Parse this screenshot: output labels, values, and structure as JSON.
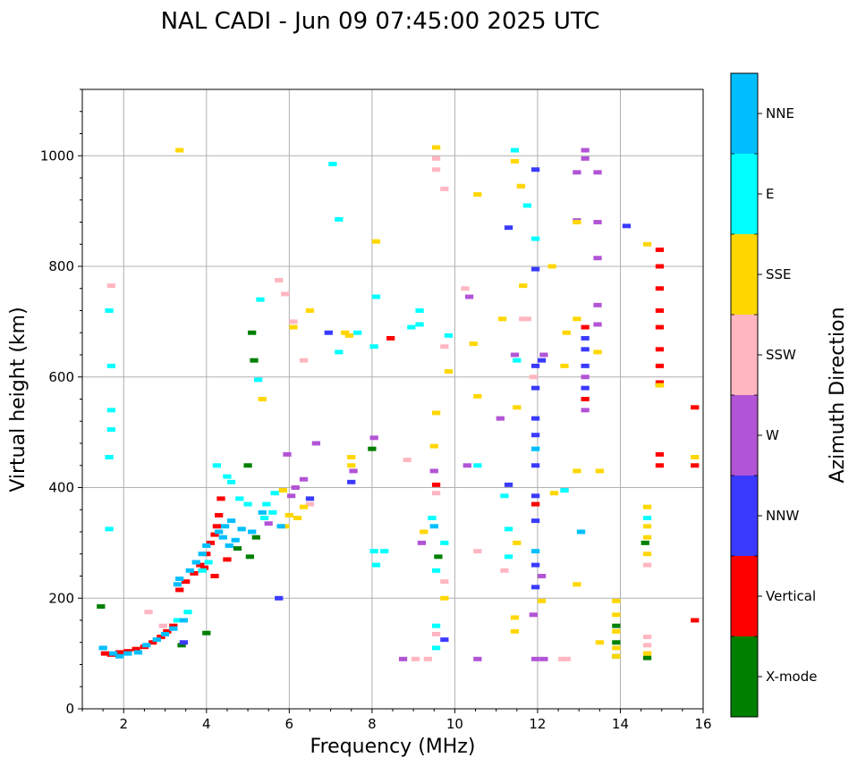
{
  "chart_data": {
    "type": "scatter",
    "title": "NAL CADI - Jun 09 07:45:00 2025 UTC",
    "xlabel": "Frequency (MHz)",
    "ylabel": "Virtual height (km)",
    "xlim": [
      1,
      16
    ],
    "ylim": [
      0,
      1120
    ],
    "grid": true,
    "xticks": [
      2,
      4,
      6,
      8,
      10,
      12,
      14,
      16
    ],
    "xtick_labels": [
      "2",
      "4",
      "6",
      "8",
      "10",
      "12",
      "14",
      "16"
    ],
    "yticks": [
      0,
      200,
      400,
      600,
      800,
      1000
    ],
    "ytick_labels": [
      "0",
      "200",
      "400",
      "600",
      "800",
      "1000"
    ],
    "colorbar": {
      "label": "Azimuth Direction",
      "placement": "right",
      "categories": [
        {
          "name": "X-mode",
          "color": "#008000"
        },
        {
          "name": "Vertical",
          "color": "#ff0000"
        },
        {
          "name": "NNW",
          "color": "#3a3aff"
        },
        {
          "name": "W",
          "color": "#b254d6"
        },
        {
          "name": "SSW",
          "color": "#ffb6c1"
        },
        {
          "name": "SSE",
          "color": "#ffd700"
        },
        {
          "name": "E",
          "color": "#00ffff"
        },
        {
          "name": "NNE",
          "color": "#00bfff"
        }
      ]
    },
    "series": [
      {
        "name": "Vertical",
        "points": [
          [
            1.55,
            100
          ],
          [
            1.7,
            98
          ],
          [
            1.9,
            102
          ],
          [
            2.1,
            104
          ],
          [
            2.3,
            108
          ],
          [
            2.5,
            112
          ],
          [
            2.7,
            120
          ],
          [
            2.9,
            130
          ],
          [
            3.05,
            140
          ],
          [
            3.2,
            150
          ],
          [
            3.35,
            215
          ],
          [
            3.5,
            230
          ],
          [
            3.7,
            245
          ],
          [
            3.85,
            260
          ],
          [
            4.0,
            280
          ],
          [
            4.1,
            300
          ],
          [
            4.2,
            315
          ],
          [
            4.25,
            330
          ],
          [
            4.3,
            350
          ],
          [
            4.35,
            380
          ],
          [
            4.2,
            240
          ],
          [
            3.95,
            255
          ],
          [
            4.5,
            270
          ],
          [
            14.95,
            830
          ],
          [
            14.95,
            800
          ],
          [
            14.95,
            760
          ],
          [
            14.95,
            720
          ],
          [
            14.95,
            690
          ],
          [
            14.95,
            650
          ],
          [
            14.95,
            620
          ],
          [
            14.95,
            590
          ],
          [
            14.95,
            460
          ],
          [
            14.95,
            440
          ],
          [
            15.8,
            545
          ],
          [
            15.8,
            440
          ],
          [
            15.8,
            160
          ],
          [
            8.45,
            670
          ],
          [
            11.95,
            370
          ],
          [
            9.55,
            405
          ],
          [
            13.15,
            690
          ],
          [
            13.15,
            560
          ]
        ]
      },
      {
        "name": "X-mode",
        "points": [
          [
            1.45,
            185
          ],
          [
            4.0,
            137
          ],
          [
            3.4,
            115
          ],
          [
            5.1,
            680
          ],
          [
            5.15,
            630
          ],
          [
            5.0,
            440
          ],
          [
            4.75,
            290
          ],
          [
            5.2,
            310
          ],
          [
            8.0,
            470
          ],
          [
            13.9,
            95
          ],
          [
            13.9,
            120
          ],
          [
            13.9,
            150
          ],
          [
            14.65,
            92
          ],
          [
            14.6,
            300
          ],
          [
            14.95,
            585
          ],
          [
            9.6,
            275
          ],
          [
            5.05,
            275
          ]
        ]
      },
      {
        "name": "NNW",
        "points": [
          [
            13.15,
            580
          ],
          [
            13.15,
            620
          ],
          [
            13.15,
            650
          ],
          [
            13.15,
            670
          ],
          [
            14.15,
            873
          ],
          [
            11.95,
            620
          ],
          [
            11.95,
            580
          ],
          [
            11.95,
            525
          ],
          [
            11.95,
            440
          ],
          [
            11.95,
            385
          ],
          [
            11.95,
            260
          ],
          [
            11.95,
            220
          ],
          [
            11.3,
            870
          ],
          [
            11.3,
            405
          ],
          [
            12.1,
            630
          ],
          [
            5.75,
            200
          ],
          [
            6.95,
            680
          ],
          [
            7.5,
            410
          ],
          [
            9.75,
            125
          ],
          [
            11.95,
            975
          ],
          [
            11.95,
            795
          ],
          [
            11.95,
            495
          ],
          [
            11.95,
            340
          ],
          [
            6.5,
            380
          ],
          [
            3.45,
            120
          ]
        ]
      },
      {
        "name": "W",
        "points": [
          [
            13.15,
            1010
          ],
          [
            13.15,
            995
          ],
          [
            13.15,
            540
          ],
          [
            13.15,
            600
          ],
          [
            13.45,
            970
          ],
          [
            13.45,
            880
          ],
          [
            13.45,
            815
          ],
          [
            13.45,
            730
          ],
          [
            13.45,
            695
          ],
          [
            12.95,
            970
          ],
          [
            12.95,
            883
          ],
          [
            12.65,
            395
          ],
          [
            11.1,
            525
          ],
          [
            11.9,
            170
          ],
          [
            11.95,
            90
          ],
          [
            12.1,
            240
          ],
          [
            10.3,
            440
          ],
          [
            10.55,
            90
          ],
          [
            9.5,
            430
          ],
          [
            9.2,
            300
          ],
          [
            8.75,
            90
          ],
          [
            6.65,
            480
          ],
          [
            6.35,
            415
          ],
          [
            6.15,
            400
          ],
          [
            6.05,
            385
          ],
          [
            5.95,
            460
          ],
          [
            7.55,
            430
          ],
          [
            8.05,
            490
          ],
          [
            10.35,
            745
          ],
          [
            11.45,
            640
          ],
          [
            12.15,
            640
          ],
          [
            12.15,
            90
          ],
          [
            5.5,
            335
          ]
        ]
      },
      {
        "name": "SSW",
        "points": [
          [
            1.7,
            765
          ],
          [
            2.6,
            175
          ],
          [
            2.95,
            150
          ],
          [
            5.75,
            775
          ],
          [
            5.9,
            750
          ],
          [
            6.1,
            700
          ],
          [
            6.35,
            630
          ],
          [
            5.85,
            395
          ],
          [
            6.5,
            370
          ],
          [
            9.55,
            995
          ],
          [
            9.55,
            975
          ],
          [
            9.75,
            940
          ],
          [
            9.75,
            655
          ],
          [
            9.75,
            230
          ],
          [
            9.55,
            390
          ],
          [
            9.55,
            135
          ],
          [
            9.05,
            90
          ],
          [
            9.35,
            90
          ],
          [
            8.85,
            450
          ],
          [
            10.25,
            760
          ],
          [
            10.55,
            285
          ],
          [
            11.2,
            250
          ],
          [
            11.6,
            945
          ],
          [
            11.65,
            705
          ],
          [
            11.9,
            600
          ],
          [
            11.75,
            705
          ],
          [
            12.6,
            90
          ],
          [
            12.7,
            90
          ],
          [
            14.65,
            130
          ],
          [
            14.65,
            115
          ],
          [
            14.65,
            100
          ],
          [
            14.65,
            260
          ]
        ]
      },
      {
        "name": "SSE",
        "points": [
          [
            3.35,
            1010
          ],
          [
            6.5,
            720
          ],
          [
            6.1,
            690
          ],
          [
            5.35,
            560
          ],
          [
            5.85,
            395
          ],
          [
            6.0,
            350
          ],
          [
            6.2,
            345
          ],
          [
            5.9,
            330
          ],
          [
            6.35,
            365
          ],
          [
            7.5,
            455
          ],
          [
            7.5,
            440
          ],
          [
            7.45,
            675
          ],
          [
            7.35,
            680
          ],
          [
            8.1,
            845
          ],
          [
            9.25,
            320
          ],
          [
            9.5,
            475
          ],
          [
            9.55,
            535
          ],
          [
            9.55,
            1015
          ],
          [
            9.85,
            610
          ],
          [
            9.75,
            200
          ],
          [
            10.55,
            930
          ],
          [
            10.45,
            660
          ],
          [
            10.55,
            565
          ],
          [
            11.15,
            705
          ],
          [
            11.45,
            990
          ],
          [
            11.45,
            165
          ],
          [
            11.45,
            140
          ],
          [
            11.6,
            945
          ],
          [
            11.5,
            545
          ],
          [
            11.5,
            300
          ],
          [
            11.65,
            765
          ],
          [
            12.1,
            195
          ],
          [
            12.35,
            800
          ],
          [
            12.4,
            390
          ],
          [
            12.7,
            680
          ],
          [
            12.65,
            620
          ],
          [
            12.95,
            880
          ],
          [
            12.95,
            705
          ],
          [
            12.95,
            430
          ],
          [
            12.95,
            225
          ],
          [
            13.45,
            645
          ],
          [
            13.5,
            430
          ],
          [
            13.5,
            120
          ],
          [
            13.9,
            195
          ],
          [
            13.9,
            170
          ],
          [
            13.9,
            140
          ],
          [
            13.9,
            110
          ],
          [
            13.9,
            95
          ],
          [
            14.65,
            840
          ],
          [
            14.65,
            365
          ],
          [
            14.65,
            330
          ],
          [
            14.65,
            310
          ],
          [
            14.65,
            280
          ],
          [
            14.65,
            100
          ],
          [
            15.8,
            455
          ],
          [
            14.95,
            585
          ]
        ]
      },
      {
        "name": "E",
        "points": [
          [
            1.65,
            720
          ],
          [
            1.7,
            620
          ],
          [
            1.7,
            540
          ],
          [
            1.7,
            505
          ],
          [
            1.65,
            455
          ],
          [
            1.65,
            325
          ],
          [
            3.55,
            175
          ],
          [
            3.3,
            160
          ],
          [
            4.25,
            440
          ],
          [
            4.5,
            420
          ],
          [
            4.6,
            410
          ],
          [
            4.8,
            380
          ],
          [
            5.0,
            370
          ],
          [
            5.3,
            740
          ],
          [
            5.25,
            595
          ],
          [
            5.45,
            370
          ],
          [
            5.6,
            355
          ],
          [
            5.65,
            390
          ],
          [
            5.4,
            345
          ],
          [
            7.05,
            985
          ],
          [
            7.2,
            885
          ],
          [
            7.2,
            645
          ],
          [
            7.65,
            680
          ],
          [
            8.05,
            655
          ],
          [
            8.05,
            285
          ],
          [
            8.1,
            260
          ],
          [
            8.1,
            745
          ],
          [
            8.3,
            285
          ],
          [
            8.95,
            690
          ],
          [
            9.15,
            720
          ],
          [
            9.15,
            695
          ],
          [
            9.45,
            345
          ],
          [
            9.55,
            250
          ],
          [
            9.55,
            150
          ],
          [
            9.55,
            110
          ],
          [
            9.75,
            300
          ],
          [
            9.85,
            675
          ],
          [
            10.55,
            440
          ],
          [
            11.2,
            385
          ],
          [
            11.3,
            325
          ],
          [
            11.3,
            275
          ],
          [
            11.45,
            1010
          ],
          [
            11.5,
            630
          ],
          [
            11.75,
            910
          ],
          [
            11.95,
            850
          ],
          [
            11.95,
            470
          ],
          [
            12.65,
            395
          ],
          [
            13.05,
            320
          ],
          [
            14.65,
            345
          ],
          [
            3.9,
            250
          ],
          [
            4.05,
            265
          ]
        ]
      },
      {
        "name": "NNE",
        "points": [
          [
            1.5,
            110
          ],
          [
            1.75,
            100
          ],
          [
            1.9,
            95
          ],
          [
            2.1,
            100
          ],
          [
            2.35,
            102
          ],
          [
            2.55,
            115
          ],
          [
            2.8,
            125
          ],
          [
            3.0,
            135
          ],
          [
            3.2,
            145
          ],
          [
            3.35,
            235
          ],
          [
            3.6,
            250
          ],
          [
            3.75,
            265
          ],
          [
            3.9,
            280
          ],
          [
            4.0,
            295
          ],
          [
            4.3,
            320
          ],
          [
            4.45,
            330
          ],
          [
            4.6,
            340
          ],
          [
            4.85,
            325
          ],
          [
            5.1,
            320
          ],
          [
            4.7,
            305
          ],
          [
            4.55,
            295
          ],
          [
            4.4,
            310
          ],
          [
            3.45,
            160
          ],
          [
            3.3,
            225
          ],
          [
            5.35,
            355
          ],
          [
            5.8,
            330
          ],
          [
            9.5,
            330
          ],
          [
            11.95,
            470
          ],
          [
            11.95,
            285
          ],
          [
            13.05,
            320
          ]
        ]
      }
    ]
  }
}
